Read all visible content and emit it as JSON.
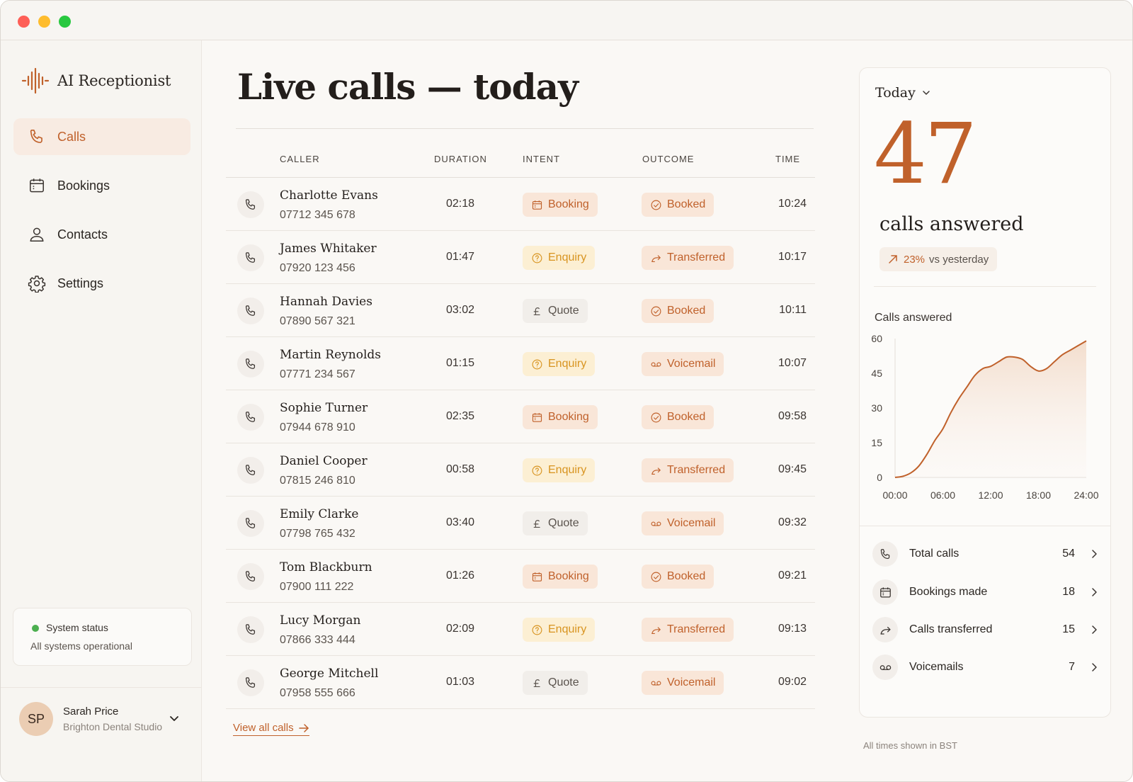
{
  "app": {
    "name": "AI Receptionist"
  },
  "sidebar": {
    "items": [
      {
        "label": "Calls",
        "icon": "phone-icon",
        "active": true
      },
      {
        "label": "Bookings",
        "icon": "calendar-icon",
        "active": false
      },
      {
        "label": "Contacts",
        "icon": "user-icon",
        "active": false
      },
      {
        "label": "Settings",
        "icon": "gear-icon",
        "active": false
      }
    ],
    "status": {
      "title": "System status",
      "message": "All systems operational",
      "color": "#4caf50"
    },
    "user": {
      "initials": "SP",
      "name": "Sarah Price",
      "org": "Brighton Dental Studio"
    }
  },
  "main": {
    "title": "Live calls — today",
    "columns": [
      "CALLER",
      "DURATION",
      "INTENT",
      "OUTCOME",
      "TIME"
    ],
    "calls": [
      {
        "name": "Charlotte Evans",
        "phone": "07712 345 678",
        "duration": "02:18",
        "intent": "Booking",
        "outcome": "Booked",
        "time": "10:24"
      },
      {
        "name": "James Whitaker",
        "phone": "07920 123 456",
        "duration": "01:47",
        "intent": "Enquiry",
        "outcome": "Transferred",
        "time": "10:17"
      },
      {
        "name": "Hannah Davies",
        "phone": "07890 567 321",
        "duration": "03:02",
        "intent": "Quote",
        "outcome": "Booked",
        "time": "10:11"
      },
      {
        "name": "Martin Reynolds",
        "phone": "07771 234 567",
        "duration": "01:15",
        "intent": "Enquiry",
        "outcome": "Voicemail",
        "time": "10:07"
      },
      {
        "name": "Sophie Turner",
        "phone": "07944 678 910",
        "duration": "02:35",
        "intent": "Booking",
        "outcome": "Booked",
        "time": "09:58"
      },
      {
        "name": "Daniel Cooper",
        "phone": "07815 246 810",
        "duration": "00:58",
        "intent": "Enquiry",
        "outcome": "Transferred",
        "time": "09:45"
      },
      {
        "name": "Emily Clarke",
        "phone": "07798 765 432",
        "duration": "03:40",
        "intent": "Quote",
        "outcome": "Voicemail",
        "time": "09:32"
      },
      {
        "name": "Tom Blackburn",
        "phone": "07900 111 222",
        "duration": "01:26",
        "intent": "Booking",
        "outcome": "Booked",
        "time": "09:21"
      },
      {
        "name": "Lucy Morgan",
        "phone": "07866 333 444",
        "duration": "02:09",
        "intent": "Enquiry",
        "outcome": "Transferred",
        "time": "09:13"
      },
      {
        "name": "George Mitchell",
        "phone": "07958 555 666",
        "duration": "01:03",
        "intent": "Quote",
        "outcome": "Voicemail",
        "time": "09:02"
      }
    ],
    "view_all": "View all calls"
  },
  "panel": {
    "period": "Today",
    "total": "47",
    "total_label": "calls answered",
    "trend_value": "23%",
    "trend_label": "vs yesterday",
    "chart_title": "Calls answered",
    "stats": [
      {
        "label": "Total calls",
        "value": "54",
        "icon": "phone-icon"
      },
      {
        "label": "Bookings made",
        "value": "18",
        "icon": "calendar-icon"
      },
      {
        "label": "Calls transferred",
        "value": "15",
        "icon": "transfer-icon"
      },
      {
        "label": "Voicemails",
        "value": "7",
        "icon": "voicemail-icon"
      }
    ],
    "footnote": "All times shown in BST"
  },
  "colors": {
    "accent": "#c0612b",
    "enquiry": "#d89420",
    "active_nav_bg": "#f8ebe2"
  },
  "chart_data": {
    "type": "area",
    "title": "Calls answered",
    "x_ticks": [
      "00:00",
      "06:00",
      "12:00",
      "18:00",
      "24:00"
    ],
    "y_ticks": [
      0,
      15,
      30,
      45,
      60
    ],
    "xlim": [
      0,
      24
    ],
    "ylim": [
      0,
      60
    ],
    "grid": false,
    "series": [
      {
        "x": [
          0,
          1,
          2,
          3,
          4,
          5,
          6,
          7,
          8,
          9,
          10,
          11,
          12,
          13,
          14,
          15,
          16,
          17,
          18,
          19,
          20,
          21,
          22,
          23,
          24
        ],
        "y": [
          0,
          0.5,
          2,
          5,
          10,
          16,
          21,
          28,
          34,
          39,
          44,
          47,
          48,
          50,
          52,
          52,
          51,
          48,
          46,
          47,
          50,
          53,
          55,
          57,
          59
        ]
      }
    ]
  }
}
